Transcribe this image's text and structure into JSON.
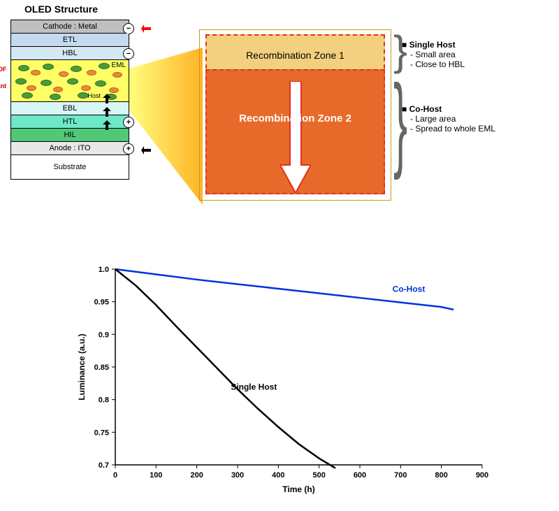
{
  "top": {
    "title": "OLED Structure",
    "layers": {
      "cathode": "Cathode : Metal",
      "etl": "ETL",
      "hbl": "HBL",
      "eml": "EML",
      "ebl": "EBL",
      "htl": "HTL",
      "hil": "HIL",
      "anode": "Anode : ITO",
      "substrate": "Substrate"
    },
    "layer_colors": {
      "cathode": "#bfbfbf",
      "etl": "#c5d9ef",
      "hbl": "#d4e8f4",
      "eml": "#feff67",
      "ebl": "#d9f6f6",
      "htl": "#6de9c9",
      "hil": "#50c878",
      "anode": "#e8e8e8",
      "substrate": "#ffffff"
    },
    "eml_species": {
      "tadf": "TADF",
      "dopant": "Dopant",
      "host": "Host"
    },
    "charges": {
      "minus": "−",
      "plus": "+"
    },
    "arrow_colors": {
      "electron": "#ff0000",
      "hole": "#000000"
    },
    "recombination": {
      "zone1": "Recombination Zone 1",
      "zone2": "Recombination Zone 2",
      "zone1_bg": "#f2d080",
      "zone2_bg": "#e86a2a",
      "border_dash": "#e03020"
    },
    "annotations": {
      "single_host": {
        "title": "Single Host",
        "items": [
          "Small area",
          "Close to HBL"
        ]
      },
      "co_host": {
        "title": "Co-Host",
        "items": [
          "Large area",
          "Spread to whole EML"
        ]
      }
    }
  },
  "chart": {
    "type": "line",
    "xlabel": "Time (h)",
    "ylabel": "Luminance (a.u.)",
    "label_fontsize": 12,
    "xlim": [
      0,
      900
    ],
    "xtick_step": 100,
    "ylim": [
      0.7,
      1.0
    ],
    "ytick_step": 0.05,
    "background_color": "#ffffff",
    "axis_color": "#000000",
    "tick_fontsize": 11,
    "series": [
      {
        "name": "Co-Host",
        "color": "#0033dd",
        "linewidth": 2.5,
        "x": [
          0,
          100,
          200,
          300,
          400,
          500,
          600,
          700,
          800,
          830
        ],
        "y": [
          1.0,
          0.992,
          0.984,
          0.977,
          0.97,
          0.963,
          0.956,
          0.949,
          0.942,
          0.938
        ],
        "label_pos": {
          "x": 720,
          "y": 0.965
        }
      },
      {
        "name": "Single Host",
        "color": "#000000",
        "linewidth": 2.5,
        "x": [
          0,
          50,
          100,
          150,
          200,
          250,
          300,
          350,
          400,
          450,
          500,
          540
        ],
        "y": [
          1.0,
          0.975,
          0.945,
          0.912,
          0.88,
          0.848,
          0.816,
          0.786,
          0.758,
          0.732,
          0.71,
          0.695
        ],
        "label_pos": {
          "x": 340,
          "y": 0.815
        }
      }
    ]
  }
}
